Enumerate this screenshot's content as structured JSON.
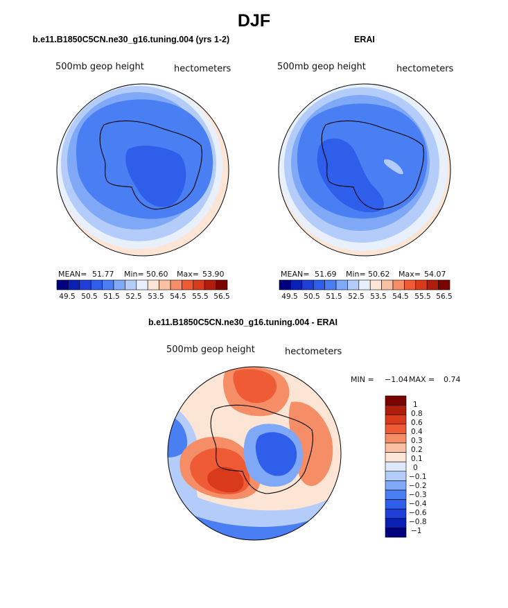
{
  "title": "DJF",
  "colors": {
    "abs_scale": [
      "#00007f",
      "#0a1fb4",
      "#1f3fd6",
      "#2f5fea",
      "#4a7ef3",
      "#7fa8f6",
      "#b3ccf9",
      "#e8f0fc",
      "#fde5d6",
      "#f9c0a3",
      "#f58e66",
      "#ee5b35",
      "#d83a1b",
      "#b01d0b",
      "#7a0500"
    ],
    "diff_scale": [
      "#00007f",
      "#0a1fb4",
      "#1f3fd6",
      "#2f5fea",
      "#4a7ef3",
      "#7fa8f6",
      "#b3ccf9",
      "#dde8fb",
      "#fde5d6",
      "#f9c0a3",
      "#f58e66",
      "#ee5b35",
      "#d83a1b",
      "#b01d0b",
      "#7a0500"
    ],
    "coast": "#000000"
  },
  "chart_data": [
    {
      "type": "heatmap",
      "name": "model",
      "title": "b.e11.B1850C5CN.ne30_g16.tuning.004 (yrs 1-2)",
      "variable": "500mb geop height",
      "units": "hectometers",
      "stats": {
        "mean_label": "MEAN=",
        "mean": "51.77",
        "min_label": "Min=",
        "min": "50.60",
        "max_label": "Max=",
        "max": "53.90"
      },
      "colorbar_ticks": [
        "49.5",
        "50.5",
        "51.5",
        "52.5",
        "53.5",
        "54.5",
        "55.5",
        "56.5"
      ]
    },
    {
      "type": "heatmap",
      "name": "obs",
      "title": "ERAI",
      "variable": "500mb geop height",
      "units": "hectometers",
      "stats": {
        "mean_label": "MEAN=",
        "mean": "51.69",
        "min_label": "Min=",
        "min": "50.62",
        "max_label": "Max=",
        "max": "54.07"
      },
      "colorbar_ticks": [
        "49.5",
        "50.5",
        "51.5",
        "52.5",
        "53.5",
        "54.5",
        "55.5",
        "56.5"
      ]
    },
    {
      "type": "heatmap",
      "name": "difference",
      "title": "b.e11.B1850C5CN.ne30_g16.tuning.004 - ERAI",
      "variable": "500mb geop height",
      "units": "hectometers",
      "stats": {
        "min_label": "MIN =",
        "min": "−1.04",
        "max_label": "MAX =",
        "max": "0.74"
      },
      "colorbar_labels": [
        "1",
        "0.8",
        "0.6",
        "0.4",
        "0.3",
        "0.2",
        "0.1",
        "0",
        "−0.1",
        "−0.2",
        "−0.3",
        "−0.4",
        "−0.6",
        "−0.8",
        "−1"
      ]
    }
  ]
}
